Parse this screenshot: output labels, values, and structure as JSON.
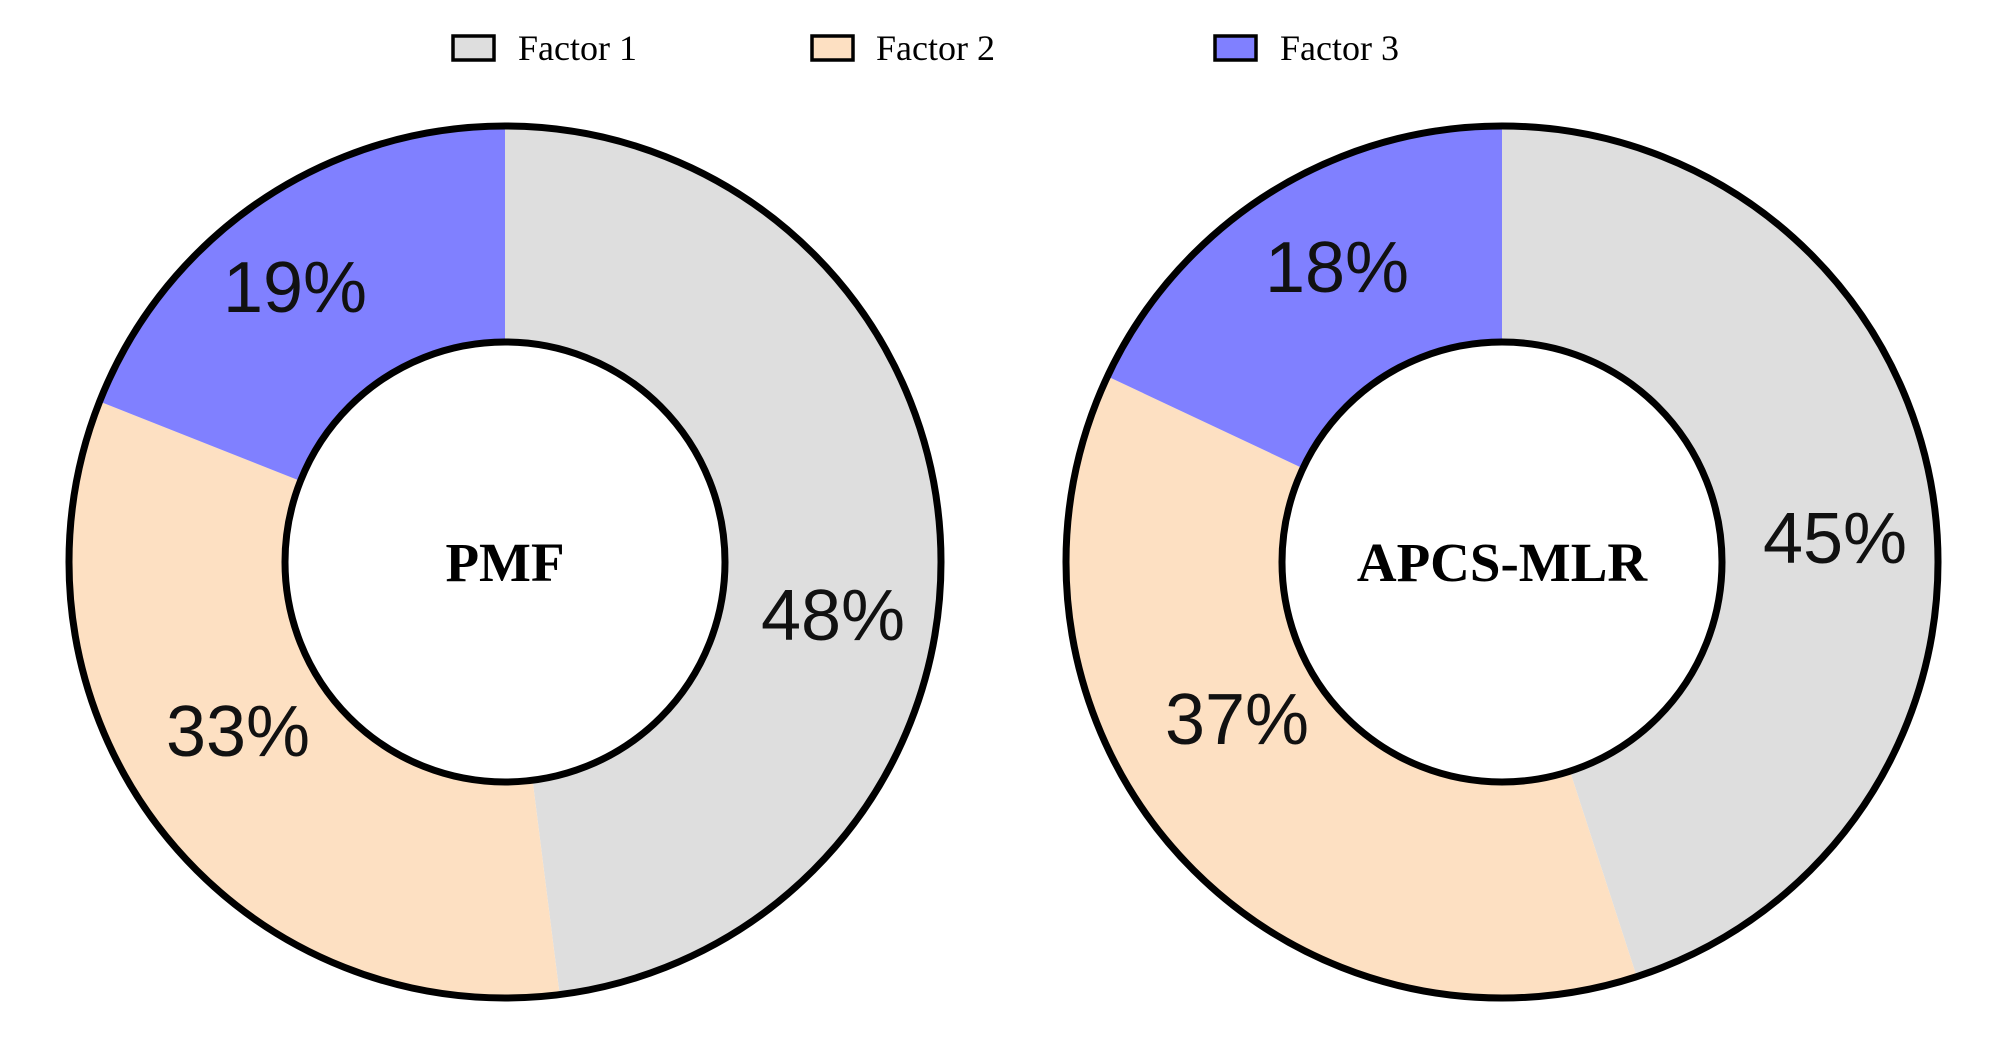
{
  "chart_data": [
    {
      "type": "pie",
      "center_label": "PMF",
      "categories": [
        "Factor 1",
        "Factor 2",
        "Factor 3"
      ],
      "values": [
        48,
        33,
        19
      ],
      "value_labels": [
        "48%",
        "33%",
        "19%"
      ],
      "start": "12 o'clock",
      "direction": "clockwise"
    },
    {
      "type": "pie",
      "center_label": "APCS-MLR",
      "categories": [
        "Factor 1",
        "Factor 2",
        "Factor 3"
      ],
      "values": [
        45,
        37,
        18
      ],
      "value_labels": [
        "45%",
        "37%",
        "18%"
      ],
      "start": "12 o'clock",
      "direction": "clockwise"
    }
  ],
  "legend": {
    "placement": "top-center",
    "items": [
      {
        "label": "Factor 1",
        "color": "#dedede"
      },
      {
        "label": "Factor 2",
        "color": "#fde0c2"
      },
      {
        "label": "Factor 3",
        "color": "#8080ff"
      }
    ]
  },
  "colors": {
    "Factor 1": "#dedede",
    "Factor 2": "#fde0c2",
    "Factor 3": "#8080ff",
    "outline": "#000000"
  }
}
